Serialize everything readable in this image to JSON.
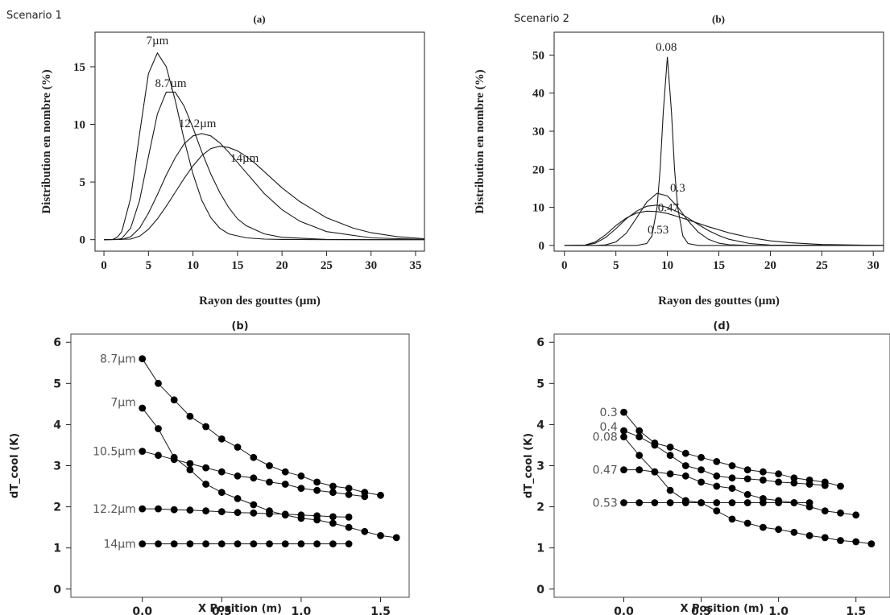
{
  "figure_labels": {
    "scenario1": "Scenario 1",
    "scenario2": "Scenario 2"
  },
  "chart_data": [
    {
      "type": "line",
      "title": "(a)",
      "xlabel": "Rayon des gouttes (µm)",
      "ylabel": "Distribution en nombre (%)",
      "xlim": [
        -1,
        36
      ],
      "ylim": [
        -1,
        18
      ],
      "xticks": [
        0,
        5,
        10,
        15,
        20,
        25,
        30,
        35
      ],
      "yticks": [
        0,
        5,
        10,
        15
      ],
      "series": [
        {
          "name": "7µm",
          "x": [
            0,
            1,
            1.5,
            2,
            3,
            4,
            5,
            6,
            7,
            8,
            9,
            10,
            11,
            12,
            13,
            14,
            16,
            18,
            20,
            25,
            30,
            36
          ],
          "values": [
            0,
            0.02,
            0.2,
            0.7,
            3.6,
            9.2,
            14.4,
            16.2,
            15.0,
            12.1,
            8.7,
            5.7,
            3.4,
            1.9,
            1.0,
            0.5,
            0.15,
            0.05,
            0.02,
            0,
            0,
            0
          ]
        },
        {
          "name": "8.7µm",
          "x": [
            0,
            1.5,
            2,
            3,
            4,
            5,
            6,
            7,
            8,
            9,
            10,
            11,
            12,
            13,
            14,
            15,
            16,
            18,
            20,
            25,
            30,
            36
          ],
          "values": [
            0,
            0.02,
            0.1,
            1.0,
            3.4,
            7.2,
            10.9,
            12.8,
            12.8,
            11.6,
            9.7,
            7.6,
            5.7,
            4.1,
            2.8,
            1.8,
            1.2,
            0.5,
            0.2,
            0.02,
            0,
            0
          ]
        },
        {
          "name": "12.2µm",
          "x": [
            0,
            2,
            3,
            4,
            5,
            6,
            7,
            8,
            9,
            10,
            11,
            12,
            13,
            14,
            15,
            16,
            17,
            18,
            20,
            22,
            25,
            30,
            36
          ],
          "values": [
            0,
            0.02,
            0.25,
            1.0,
            2.3,
            3.9,
            5.6,
            7.1,
            8.3,
            9.0,
            9.2,
            9.0,
            8.4,
            7.6,
            6.7,
            5.8,
            4.9,
            4.0,
            2.6,
            1.6,
            0.7,
            0.15,
            0.02
          ]
        },
        {
          "name": "14µm",
          "x": [
            0,
            3,
            4,
            5,
            6,
            7,
            8,
            9,
            10,
            11,
            12,
            13,
            14,
            15,
            16,
            17,
            18,
            20,
            22,
            25,
            28,
            30,
            33,
            36
          ],
          "values": [
            0,
            0.05,
            0.3,
            0.9,
            1.8,
            2.9,
            4.1,
            5.3,
            6.4,
            7.3,
            7.9,
            8.1,
            8.0,
            7.7,
            7.2,
            6.6,
            5.9,
            4.5,
            3.3,
            1.9,
            1.0,
            0.6,
            0.25,
            0.08
          ]
        }
      ],
      "annotations": [
        {
          "text": "7µm",
          "x": 6.0,
          "y": 17.3
        },
        {
          "text": "8.7µm",
          "x": 7.5,
          "y": 13.6
        },
        {
          "text": "12.2µm",
          "x": 10.5,
          "y": 10.1
        },
        {
          "text": "14µm",
          "x": 15.8,
          "y": 7.1
        }
      ],
      "grid": false
    },
    {
      "type": "line",
      "title": "(b)",
      "xlabel": "Rayon des gouttes (µm)",
      "ylabel": "Distribution en nombre (%)",
      "xlim": [
        -1,
        31
      ],
      "ylim": [
        -1.5,
        56
      ],
      "xticks": [
        0,
        5,
        10,
        15,
        20,
        25,
        30
      ],
      "yticks": [
        0,
        10,
        20,
        30,
        40,
        50
      ],
      "series": [
        {
          "name": "0.08",
          "x": [
            0,
            7,
            8,
            8.5,
            9,
            9.3,
            9.6,
            10,
            10.4,
            10.7,
            11,
            11.5,
            12,
            13,
            31
          ],
          "values": [
            0,
            0,
            0.5,
            2.5,
            10,
            20,
            35,
            49.5,
            35,
            20,
            10,
            2.5,
            0.5,
            0,
            0
          ]
        },
        {
          "name": "0.3",
          "x": [
            0,
            3,
            4,
            5,
            6,
            7,
            8,
            9,
            10,
            11,
            12,
            13,
            14,
            15,
            16,
            18,
            31
          ],
          "values": [
            0,
            0.01,
            0.15,
            0.9,
            3.2,
            7.2,
            11.4,
            13.7,
            13.0,
            10.1,
            6.5,
            3.5,
            1.6,
            0.6,
            0.2,
            0.01,
            0
          ]
        },
        {
          "name": "0.47",
          "x": [
            0,
            2,
            3,
            4,
            5,
            6,
            7,
            8,
            9,
            10,
            11,
            12,
            13,
            14,
            15,
            16,
            18,
            20,
            31
          ],
          "values": [
            0,
            0.05,
            0.6,
            2.1,
            4.4,
            7.0,
            9.0,
            10.3,
            10.6,
            10.0,
            8.8,
            7.2,
            5.5,
            3.9,
            2.6,
            1.6,
            0.5,
            0.1,
            0
          ]
        },
        {
          "name": "0.53",
          "x": [
            0,
            2,
            3,
            4,
            5,
            6,
            7,
            8,
            9,
            10,
            11,
            12,
            14,
            16,
            18,
            20,
            22,
            25,
            31
          ],
          "values": [
            0,
            0.1,
            0.9,
            2.8,
            5.2,
            7.2,
            8.5,
            9.0,
            8.9,
            8.4,
            7.6,
            6.7,
            4.9,
            3.3,
            2.1,
            1.2,
            0.7,
            0.25,
            0
          ]
        }
      ],
      "annotations": [
        {
          "text": "0.08",
          "x": 9.9,
          "y": 52.2
        },
        {
          "text": "0.3",
          "x": 11.0,
          "y": 15.2
        },
        {
          "text": "0.47",
          "x": 10.1,
          "y": 10.0
        },
        {
          "text": "0.53",
          "x": 9.1,
          "y": 4.2
        }
      ],
      "grid": false
    },
    {
      "type": "line",
      "title": "(b)",
      "xlabel": "X Position (m)",
      "ylabel": "dT_cool (K)",
      "xlim": [
        -0.45,
        1.68
      ],
      "ylim": [
        -0.2,
        6.2
      ],
      "xticks": [
        0.0,
        0.5,
        1.0,
        1.5
      ],
      "xticklabels": [
        "0.0",
        "0.5",
        "1.0",
        "1.5"
      ],
      "yticks": [
        0,
        1,
        2,
        3,
        4,
        5,
        6
      ],
      "markers": true,
      "series": [
        {
          "name": "8.7µm",
          "x": [
            0,
            0.1,
            0.2,
            0.3,
            0.4,
            0.5,
            0.6,
            0.7,
            0.8,
            0.9,
            1.0,
            1.1,
            1.2,
            1.3,
            1.4,
            1.5
          ],
          "values": [
            5.6,
            5.0,
            4.6,
            4.2,
            3.95,
            3.65,
            3.45,
            3.2,
            3.0,
            2.85,
            2.75,
            2.6,
            2.5,
            2.45,
            2.35,
            2.28
          ]
        },
        {
          "name": "7µm",
          "x": [
            0,
            0.1,
            0.2,
            0.3,
            0.4,
            0.5,
            0.6,
            0.7,
            0.8,
            0.9,
            1.0,
            1.1,
            1.2,
            1.3,
            1.4,
            1.5,
            1.6
          ],
          "values": [
            4.4,
            3.9,
            3.2,
            2.9,
            2.55,
            2.35,
            2.2,
            2.05,
            1.9,
            1.8,
            1.72,
            1.68,
            1.6,
            1.5,
            1.4,
            1.3,
            1.25
          ]
        },
        {
          "name": "10.5µm",
          "x": [
            0,
            0.1,
            0.2,
            0.3,
            0.4,
            0.5,
            0.6,
            0.7,
            0.8,
            0.9,
            1.0,
            1.1,
            1.2,
            1.3,
            1.4
          ],
          "values": [
            3.35,
            3.25,
            3.15,
            3.05,
            2.95,
            2.85,
            2.75,
            2.7,
            2.6,
            2.55,
            2.45,
            2.4,
            2.35,
            2.3,
            2.25
          ]
        },
        {
          "name": "12.2µm",
          "x": [
            0,
            0.1,
            0.2,
            0.3,
            0.4,
            0.5,
            0.6,
            0.7,
            0.8,
            0.9,
            1.0,
            1.1,
            1.2,
            1.3
          ],
          "values": [
            1.95,
            1.95,
            1.93,
            1.92,
            1.9,
            1.88,
            1.86,
            1.85,
            1.83,
            1.82,
            1.8,
            1.78,
            1.76,
            1.75
          ]
        },
        {
          "name": "14µm",
          "x": [
            0,
            0.1,
            0.2,
            0.3,
            0.4,
            0.5,
            0.6,
            0.7,
            0.8,
            0.9,
            1.0,
            1.1,
            1.2,
            1.3
          ],
          "values": [
            1.1,
            1.1,
            1.1,
            1.1,
            1.1,
            1.1,
            1.1,
            1.1,
            1.1,
            1.1,
            1.1,
            1.1,
            1.1,
            1.1
          ]
        }
      ],
      "annotations": [
        {
          "text": "8.7µm",
          "x": -0.04,
          "y": 5.6
        },
        {
          "text": "7µm",
          "x": -0.04,
          "y": 4.55
        },
        {
          "text": "10.5µm",
          "x": -0.04,
          "y": 3.35
        },
        {
          "text": "12.2µm",
          "x": -0.04,
          "y": 1.95
        },
        {
          "text": "14µm",
          "x": -0.04,
          "y": 1.1
        }
      ],
      "grid": false
    },
    {
      "type": "line",
      "title": "(d)",
      "xlabel": "X Position (m)",
      "ylabel": "dT_cool (K)",
      "xlim": [
        -0.45,
        1.72
      ],
      "ylim": [
        -0.2,
        6.2
      ],
      "xticks": [
        0.0,
        0.5,
        1.0,
        1.5
      ],
      "xticklabels": [
        "0.0",
        "0.5",
        "1.0",
        "1.5"
      ],
      "yticks": [
        0,
        1,
        2,
        3,
        4,
        5,
        6
      ],
      "markers": true,
      "series": [
        {
          "name": "0.3",
          "x": [
            0,
            0.1,
            0.2,
            0.3,
            0.4,
            0.5,
            0.6,
            0.7,
            0.8,
            0.9,
            1.0,
            1.1,
            1.2,
            1.3,
            1.4
          ],
          "values": [
            4.3,
            3.85,
            3.55,
            3.45,
            3.3,
            3.2,
            3.1,
            3.0,
            2.9,
            2.85,
            2.8,
            2.7,
            2.65,
            2.6,
            2.5
          ]
        },
        {
          "name": "0.4",
          "x": [
            0,
            0.1,
            0.2,
            0.3,
            0.4,
            0.5,
            0.6,
            0.7,
            0.8,
            0.9,
            1.0,
            1.1,
            1.2,
            1.3
          ],
          "values": [
            3.85,
            3.7,
            3.5,
            3.25,
            3.0,
            2.9,
            2.75,
            2.7,
            2.68,
            2.65,
            2.6,
            2.58,
            2.55,
            2.52
          ]
        },
        {
          "name": "0.08",
          "x": [
            0,
            0.1,
            0.2,
            0.3,
            0.4,
            0.5,
            0.6,
            0.7,
            0.8,
            0.9,
            1.0,
            1.1,
            1.2,
            1.3,
            1.4,
            1.5,
            1.6
          ],
          "values": [
            3.7,
            3.25,
            2.85,
            2.4,
            2.15,
            2.1,
            1.9,
            1.7,
            1.6,
            1.5,
            1.45,
            1.38,
            1.3,
            1.25,
            1.18,
            1.15,
            1.1
          ]
        },
        {
          "name": "0.47",
          "x": [
            0,
            0.1,
            0.2,
            0.3,
            0.4,
            0.5,
            0.6,
            0.7,
            0.8,
            0.9,
            1.0,
            1.1,
            1.2,
            1.3,
            1.4,
            1.5
          ],
          "values": [
            2.9,
            2.9,
            2.85,
            2.8,
            2.75,
            2.6,
            2.5,
            2.45,
            2.3,
            2.2,
            2.15,
            2.1,
            2.0,
            1.9,
            1.85,
            1.8
          ]
        },
        {
          "name": "0.53",
          "x": [
            0,
            0.1,
            0.2,
            0.3,
            0.4,
            0.5,
            0.6,
            0.7,
            0.8,
            0.9,
            1.0,
            1.1,
            1.2
          ],
          "values": [
            2.1,
            2.1,
            2.1,
            2.1,
            2.1,
            2.1,
            2.1,
            2.1,
            2.1,
            2.1,
            2.1,
            2.1,
            2.1
          ]
        }
      ],
      "annotations": [
        {
          "text": "0.3",
          "x": -0.04,
          "y": 4.3
        },
        {
          "text": "0.4",
          "x": -0.04,
          "y": 3.95
        },
        {
          "text": "0.08",
          "x": -0.04,
          "y": 3.7
        },
        {
          "text": "0.47",
          "x": -0.04,
          "y": 2.9
        },
        {
          "text": "0.53",
          "x": -0.04,
          "y": 2.1
        }
      ],
      "grid": false
    }
  ]
}
